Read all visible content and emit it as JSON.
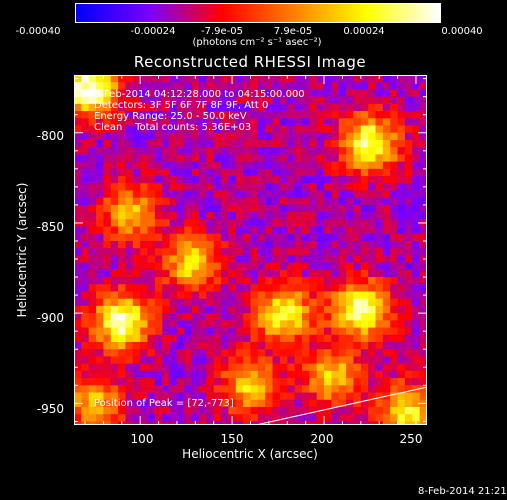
{
  "colorbar": {
    "ticks": [
      "-0.00040",
      "-0.00024",
      "-7.9e-05",
      "7.9e-05",
      "0.00024",
      "0.00040"
    ],
    "units": "(photons cm⁻² s⁻¹ asec⁻²)",
    "range": [
      -0.0004,
      0.0004
    ],
    "colormap": [
      "#0000ff",
      "#7a00ff",
      "#ff0000",
      "#ff8000",
      "#ffff00",
      "#ffffff"
    ]
  },
  "chart_data": {
    "type": "heatmap",
    "title": "Reconstructed RHESSI Image",
    "xlabel": "Heliocentric X (arcsec)",
    "ylabel": "Heliocentric Y (arcsec)",
    "xlim": [
      64,
      256
    ],
    "ylim": [
      -962,
      -768
    ],
    "xticks": [
      "100",
      "150",
      "200",
      "250"
    ],
    "yticks": [
      "-800",
      "-850",
      "-900",
      "-950"
    ],
    "info_lines": [
      "8-Feb-2014 04:12:28.000 to 04:15:00.000",
      "Detectors: 3F 5F 6F 7F 8F 9F, Att 0",
      "Energy Range: 25.0 - 50.0 keV",
      "Clean    Total counts: 5.36E+03"
    ],
    "peak_label": "Position of Peak = [72,-773]",
    "peak": [
      72,
      -773
    ],
    "sources": [
      {
        "x": 90,
        "y": -905,
        "value": 0.00035
      },
      {
        "x": 220,
        "y": -898,
        "value": 0.00034
      },
      {
        "x": 178,
        "y": -900,
        "value": 0.00028
      },
      {
        "x": 225,
        "y": -806,
        "value": 0.00033
      },
      {
        "x": 72,
        "y": -775,
        "value": 0.0004
      },
      {
        "x": 128,
        "y": -872,
        "value": 0.0002
      },
      {
        "x": 95,
        "y": -845,
        "value": 0.00016
      },
      {
        "x": 160,
        "y": -940,
        "value": 0.0002
      },
      {
        "x": 245,
        "y": -955,
        "value": 0.00025
      },
      {
        "x": 205,
        "y": -935,
        "value": 0.00018
      },
      {
        "x": 75,
        "y": -950,
        "value": 0.00015
      }
    ],
    "grid": false,
    "limb_line": [
      [
        163,
        -962
      ],
      [
        256,
        -941
      ]
    ]
  },
  "timestamp": "8-Feb-2014 21:21"
}
